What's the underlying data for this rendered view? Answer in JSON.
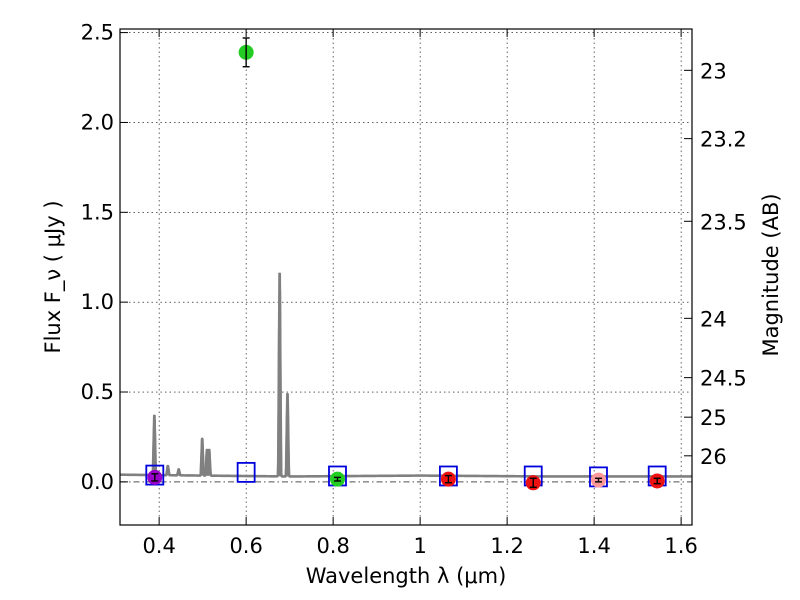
{
  "chart_data": {
    "type": "scatter",
    "xlabel": "Wavelength  λ (μm)",
    "ylabel": "Flux  F_ν  ( μJy )",
    "ylabel_right": "Magnitude (AB)",
    "xlim": [
      0.31,
      1.625
    ],
    "ylim": [
      -0.24,
      2.52
    ],
    "grid": true,
    "x_ticks": [
      {
        "value": 0.4,
        "label": "0.4"
      },
      {
        "value": 0.6,
        "label": "0.6"
      },
      {
        "value": 0.8,
        "label": "0.8"
      },
      {
        "value": 1.0,
        "label": "1"
      },
      {
        "value": 1.2,
        "label": "1.2"
      },
      {
        "value": 1.4,
        "label": "1.4"
      },
      {
        "value": 1.6,
        "label": "1.6"
      }
    ],
    "y_ticks": [
      {
        "value": 0.0,
        "label": "0.0"
      },
      {
        "value": 0.5,
        "label": "0.5"
      },
      {
        "value": 1.0,
        "label": "1.0"
      },
      {
        "value": 1.5,
        "label": "1.5"
      },
      {
        "value": 2.0,
        "label": "2.0"
      },
      {
        "value": 2.5,
        "label": "2.5"
      }
    ],
    "right_ticks": [
      {
        "label": "23",
        "flux": 2.29
      },
      {
        "label": "23.2",
        "flux": 1.91
      },
      {
        "label": "23.5",
        "flux": 1.45
      },
      {
        "label": "24",
        "flux": 0.91
      },
      {
        "label": "24.5",
        "flux": 0.58
      },
      {
        "label": "25",
        "flux": 0.36
      },
      {
        "label": "26",
        "flux": 0.145
      }
    ],
    "template_spectrum": {
      "name": "model spectrum",
      "color": "#808080",
      "baseline": [
        [
          0.31,
          0.04
        ],
        [
          0.5,
          0.035
        ],
        [
          0.7,
          0.03
        ],
        [
          1.0,
          0.035
        ],
        [
          1.3,
          0.03
        ],
        [
          1.625,
          0.03
        ]
      ],
      "lines": [
        {
          "center": 0.389,
          "peak": 0.37
        },
        {
          "center": 0.42,
          "peak": 0.09
        },
        {
          "center": 0.445,
          "peak": 0.07
        },
        {
          "center": 0.499,
          "peak": 0.24
        },
        {
          "center": 0.51,
          "peak": 0.18
        },
        {
          "center": 0.515,
          "peak": 0.18
        },
        {
          "center": 0.677,
          "peak": 1.16
        },
        {
          "center": 0.695,
          "peak": 0.49
        }
      ]
    },
    "model_points": {
      "name": "model photometry",
      "color": "#0000dd",
      "marker": "square",
      "x": [
        0.39,
        0.6,
        0.81,
        1.065,
        1.26,
        1.41,
        1.545
      ],
      "y": [
        0.035,
        0.05,
        0.03,
        0.03,
        0.03,
        0.025,
        0.03
      ]
    },
    "observed_points": [
      {
        "x": 0.39,
        "y": 0.025,
        "err": 0.02,
        "color": "#9900cc"
      },
      {
        "x": 0.6,
        "y": 2.39,
        "err": 0.08,
        "color": "#22cc22"
      },
      {
        "x": 0.81,
        "y": 0.015,
        "err": 0.01,
        "color": "#22cc22"
      },
      {
        "x": 1.065,
        "y": 0.015,
        "err": 0.02,
        "color": "#ee1111"
      },
      {
        "x": 1.26,
        "y": -0.005,
        "err": 0.025,
        "color": "#ee1111"
      },
      {
        "x": 1.41,
        "y": 0.01,
        "err": 0.01,
        "color": "#ff9999"
      },
      {
        "x": 1.545,
        "y": 0.005,
        "err": 0.015,
        "color": "#ee1111"
      }
    ]
  }
}
